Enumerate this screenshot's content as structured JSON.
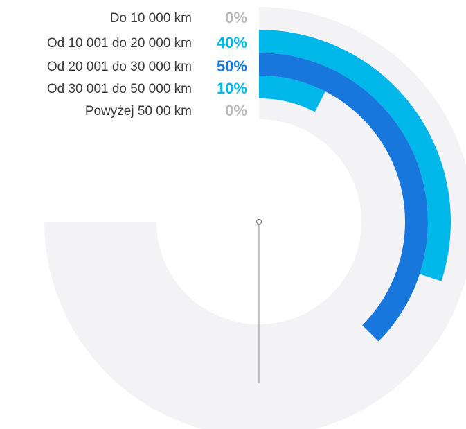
{
  "chart_data": {
    "type": "radial_bar",
    "categories": [
      "Do 10 000 km",
      "Od 10 001 do 20 000 km",
      "Od 20 001 do 30 000 km",
      "Od 30 001 do 50 000 km",
      "Powyżej 50 00 km"
    ],
    "values": [
      0,
      40,
      50,
      10,
      0
    ],
    "value_labels": [
      "0%",
      "40%",
      "50%",
      "10%",
      "0%"
    ],
    "max": 100,
    "unit": "%",
    "colors": {
      "track": "#f3f3f6",
      "zero": "#b9b9b9",
      "series": [
        "#b9b9b9",
        "#00b7ea",
        "#1777dc",
        "#00b7ea",
        "#b9b9b9"
      ],
      "label_text": "#3a3a3a",
      "axis_line": "#8c8c8c"
    }
  }
}
